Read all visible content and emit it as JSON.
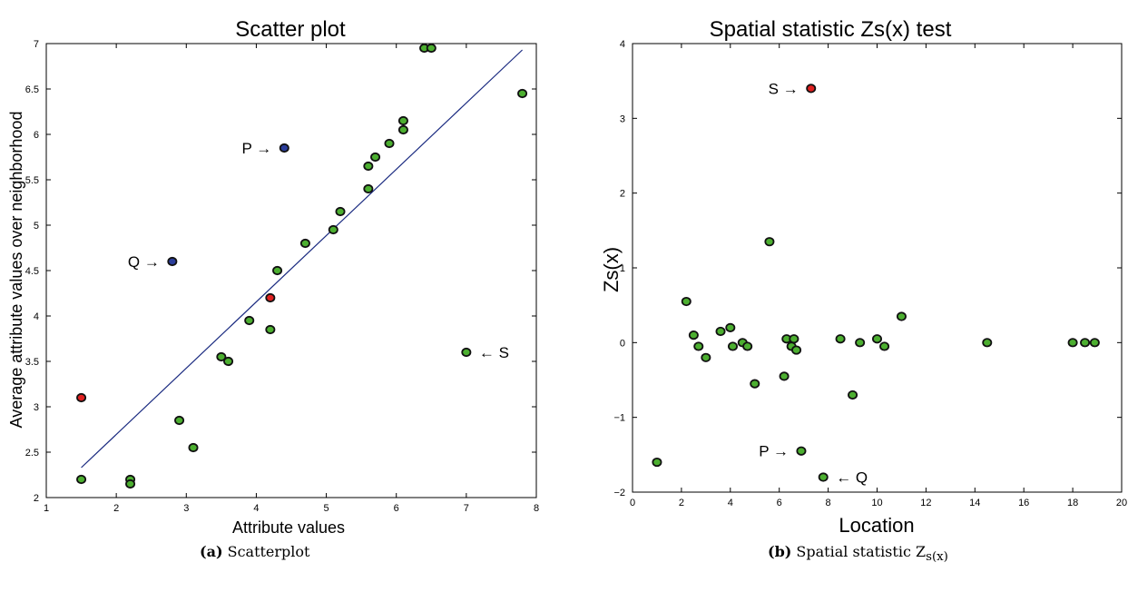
{
  "chart_data": [
    {
      "type": "scatter",
      "title": "Scatter plot",
      "xlabel": "Attribute values",
      "ylabel": "Average attribute values over neighborhood",
      "xlim": [
        1,
        8
      ],
      "ylim": [
        2,
        7
      ],
      "xticks": [
        1,
        2,
        3,
        4,
        5,
        6,
        7,
        8
      ],
      "yticks": [
        2,
        2.5,
        3,
        3.5,
        4,
        4.5,
        5,
        5.5,
        6,
        6.5,
        7
      ],
      "grid": false,
      "series": [
        {
          "color": "#4caf30",
          "points": [
            {
              "x": 1.5,
              "y": 2.2
            },
            {
              "x": 2.2,
              "y": 2.2
            },
            {
              "x": 2.2,
              "y": 2.15
            },
            {
              "x": 2.9,
              "y": 2.85
            },
            {
              "x": 3.1,
              "y": 2.55
            },
            {
              "x": 3.5,
              "y": 3.55
            },
            {
              "x": 3.6,
              "y": 3.5
            },
            {
              "x": 3.9,
              "y": 3.95
            },
            {
              "x": 4.2,
              "y": 3.85
            },
            {
              "x": 4.3,
              "y": 4.5
            },
            {
              "x": 4.7,
              "y": 4.8
            },
            {
              "x": 5.1,
              "y": 4.95
            },
            {
              "x": 5.2,
              "y": 5.15
            },
            {
              "x": 5.6,
              "y": 5.4
            },
            {
              "x": 5.6,
              "y": 5.65
            },
            {
              "x": 5.7,
              "y": 5.75
            },
            {
              "x": 5.9,
              "y": 5.9
            },
            {
              "x": 6.1,
              "y": 6.05
            },
            {
              "x": 6.1,
              "y": 6.15
            },
            {
              "x": 6.4,
              "y": 6.95
            },
            {
              "x": 6.5,
              "y": 6.95
            },
            {
              "x": 7.8,
              "y": 6.45
            },
            {
              "x": 7.0,
              "y": 3.6
            }
          ]
        },
        {
          "color": "#e02020",
          "points": [
            {
              "x": 1.5,
              "y": 3.1
            },
            {
              "x": 4.2,
              "y": 4.2
            }
          ]
        },
        {
          "color": "#2a3d9a",
          "points": [
            {
              "x": 2.8,
              "y": 4.6
            },
            {
              "x": 4.4,
              "y": 5.85
            }
          ]
        }
      ],
      "fit_line": {
        "x": [
          1.5,
          7.8
        ],
        "y": [
          2.33,
          6.93
        ],
        "color": "#1a2a80"
      },
      "annotations": [
        {
          "text": "P →",
          "x": 4.4,
          "y": 5.85,
          "side": "left"
        },
        {
          "text": "Q →",
          "x": 2.8,
          "y": 4.6,
          "side": "left"
        },
        {
          "text": "← S",
          "x": 7.0,
          "y": 3.6,
          "side": "right"
        }
      ]
    },
    {
      "type": "scatter",
      "title": "Spatial statistic Zs(x) test",
      "xlabel": "Location",
      "ylabel": "Zs(x)",
      "xlim": [
        0,
        20
      ],
      "ylim": [
        -2,
        4
      ],
      "xticks": [
        0,
        2,
        4,
        6,
        8,
        10,
        12,
        14,
        16,
        18,
        20
      ],
      "yticks": [
        -2,
        -1,
        0,
        1,
        2,
        3,
        4
      ],
      "yticklabels": [
        "−2",
        "−1",
        "0",
        "1",
        "2",
        "3",
        "4"
      ],
      "grid": false,
      "series": [
        {
          "color": "#4caf30",
          "points": [
            {
              "x": 1.0,
              "y": -1.6
            },
            {
              "x": 2.2,
              "y": 0.55
            },
            {
              "x": 2.5,
              "y": 0.1
            },
            {
              "x": 2.7,
              "y": -0.05
            },
            {
              "x": 3.0,
              "y": -0.2
            },
            {
              "x": 3.6,
              "y": 0.15
            },
            {
              "x": 4.0,
              "y": 0.2
            },
            {
              "x": 4.1,
              "y": -0.05
            },
            {
              "x": 4.5,
              "y": 0.0
            },
            {
              "x": 4.7,
              "y": -0.05
            },
            {
              "x": 5.0,
              "y": -0.55
            },
            {
              "x": 5.6,
              "y": 1.35
            },
            {
              "x": 6.2,
              "y": -0.45
            },
            {
              "x": 6.3,
              "y": 0.05
            },
            {
              "x": 6.5,
              "y": -0.05
            },
            {
              "x": 6.6,
              "y": 0.05
            },
            {
              "x": 6.7,
              "y": -0.1
            },
            {
              "x": 6.9,
              "y": -1.45
            },
            {
              "x": 7.8,
              "y": -1.8
            },
            {
              "x": 8.5,
              "y": 0.05
            },
            {
              "x": 9.0,
              "y": -0.7
            },
            {
              "x": 9.3,
              "y": 0.0
            },
            {
              "x": 10.0,
              "y": 0.05
            },
            {
              "x": 10.3,
              "y": -0.05
            },
            {
              "x": 11.0,
              "y": 0.35
            },
            {
              "x": 14.5,
              "y": 0.0
            },
            {
              "x": 18.0,
              "y": 0.0
            },
            {
              "x": 18.5,
              "y": 0.0
            },
            {
              "x": 18.9,
              "y": 0.0
            }
          ]
        },
        {
          "color": "#e02020",
          "points": [
            {
              "x": 7.3,
              "y": 3.4
            }
          ]
        }
      ],
      "annotations": [
        {
          "text": "S →",
          "x": 7.3,
          "y": 3.4,
          "side": "left"
        },
        {
          "text": "P →",
          "x": 6.9,
          "y": -1.45,
          "side": "left"
        },
        {
          "text": "← Q",
          "x": 7.8,
          "y": -1.8,
          "side": "right"
        }
      ]
    }
  ],
  "captions": [
    {
      "label": "(a)",
      "text": "Scatterplot"
    },
    {
      "label": "(b)",
      "text": "Spatial statistic Z",
      "subscript": "s(x)"
    }
  ]
}
